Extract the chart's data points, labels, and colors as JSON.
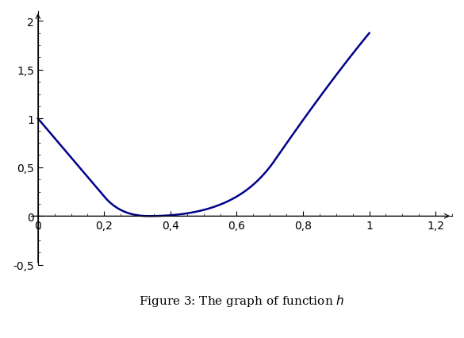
{
  "title": "Figure 3: The graph of function $h$",
  "line_color": "#00008B",
  "line_width": 1.8,
  "xlim": [
    -0.02,
    1.25
  ],
  "ylim": [
    -0.5,
    2.1
  ],
  "xticks": [
    0,
    0.2,
    0.4,
    0.6,
    0.8,
    1.0,
    1.2
  ],
  "yticks": [
    -0.5,
    0,
    0.5,
    1.0,
    1.5,
    2.0
  ],
  "ytick_labels": [
    "-0,5",
    "0",
    "0,5",
    "1",
    "1,5",
    "2"
  ],
  "xtick_labels": [
    "0",
    "0,2",
    "0,4",
    "0,6",
    "0,8",
    "1",
    "1,2"
  ],
  "n_points": 2000,
  "background_color": "#ffffff",
  "figsize": [
    5.85,
    4.27
  ],
  "dpi": 100
}
